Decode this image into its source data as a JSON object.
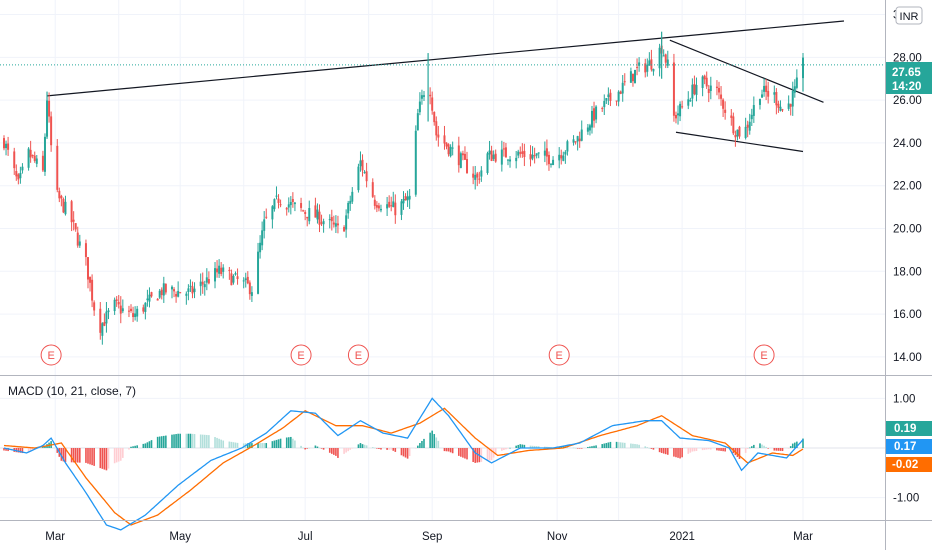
{
  "chart_data": [
    {
      "type": "candlestick",
      "currency_label": "INR",
      "ylim": [
        13.2,
        30.4
      ],
      "y_ticks": [
        "14.00",
        "16.00",
        "18.00",
        "20.00",
        "22.00",
        "24.00",
        "26.00",
        "28.00",
        "30.00"
      ],
      "x_ticks": [
        "Mar",
        "May",
        "Jul",
        "Sep",
        "Nov",
        "2021",
        "Mar"
      ],
      "x_range": [
        "2020-02-05",
        "2021-03-01"
      ],
      "last_price": "27.65",
      "countdown": "14:20",
      "colors": {
        "up": "#26a69a",
        "down": "#ef5350",
        "price_line": "#26a69a",
        "trendline": "#131722"
      },
      "earnings_markers": [
        {
          "label": "E",
          "date": "2020-02-28"
        },
        {
          "label": "E",
          "date": "2020-06-29"
        },
        {
          "label": "E",
          "date": "2020-07-27"
        },
        {
          "label": "E",
          "date": "2020-11-02"
        },
        {
          "label": "E",
          "date": "2021-02-10"
        }
      ],
      "trendlines": [
        {
          "from": [
            "2020-02-26",
            26.2
          ],
          "to": [
            "2021-03-21",
            29.7
          ]
        },
        {
          "from": [
            "2020-12-26",
            28.8
          ],
          "to": [
            "2021-03-11",
            25.9
          ]
        },
        {
          "from": [
            "2020-12-29",
            24.5
          ],
          "to": [
            "2021-03-01",
            23.6
          ]
        }
      ],
      "close_path": [
        [
          "2020-02-05",
          24.1
        ],
        [
          "2020-02-12",
          22.0
        ],
        [
          "2020-02-17",
          23.5
        ],
        [
          "2020-02-24",
          22.6
        ],
        [
          "2020-02-26",
          26.1
        ],
        [
          "2020-02-28",
          23.8
        ],
        [
          "2020-03-02",
          21.5
        ],
        [
          "2020-03-08",
          20.6
        ],
        [
          "2020-03-16",
          18.4
        ],
        [
          "2020-03-22",
          15.3
        ],
        [
          "2020-03-30",
          16.4
        ],
        [
          "2020-04-08",
          15.9
        ],
        [
          "2020-04-22",
          17.1
        ],
        [
          "2020-05-06",
          17.0
        ],
        [
          "2020-05-20",
          18.0
        ],
        [
          "2020-06-05",
          17.2
        ],
        [
          "2020-06-11",
          20.2
        ],
        [
          "2020-06-18",
          21.4
        ],
        [
          "2020-06-28",
          20.9
        ],
        [
          "2020-07-08",
          20.5
        ],
        [
          "2020-07-19",
          19.8
        ],
        [
          "2020-07-24",
          21.7
        ],
        [
          "2020-07-28",
          23.1
        ],
        [
          "2020-08-04",
          21.3
        ],
        [
          "2020-08-14",
          20.9
        ],
        [
          "2020-08-21",
          21.4
        ],
        [
          "2020-08-25",
          25.3
        ],
        [
          "2020-08-30",
          27.2
        ],
        [
          "2020-09-03",
          24.4
        ],
        [
          "2020-09-15",
          23.2
        ],
        [
          "2020-09-23",
          22.3
        ],
        [
          "2020-09-28",
          23.4
        ],
        [
          "2020-10-10",
          23.5
        ],
        [
          "2020-10-30",
          23.3
        ],
        [
          "2020-11-10",
          24.1
        ],
        [
          "2020-11-19",
          25.3
        ],
        [
          "2020-12-01",
          26.4
        ],
        [
          "2020-12-10",
          27.4
        ],
        [
          "2020-12-18",
          27.8
        ],
        [
          "2020-12-22",
          28.5
        ],
        [
          "2020-12-25",
          27.6
        ],
        [
          "2020-12-28",
          25.2
        ],
        [
          "2021-01-02",
          25.8
        ],
        [
          "2021-01-09",
          26.9
        ],
        [
          "2021-01-18",
          26.4
        ],
        [
          "2021-01-27",
          24.6
        ],
        [
          "2021-01-31",
          24.4
        ],
        [
          "2021-02-08",
          26.4
        ],
        [
          "2021-02-15",
          26.2
        ],
        [
          "2021-02-20",
          25.4
        ],
        [
          "2021-02-25",
          26.4
        ],
        [
          "2021-03-01",
          27.65
        ]
      ]
    },
    {
      "type": "macd",
      "title": "MACD (10, 21, close, 7)",
      "ylim": [
        -1.45,
        1.45
      ],
      "y_ticks": [
        "1.00",
        "-1.00"
      ],
      "badges": [
        {
          "value": "0.19",
          "color": "#26a69a"
        },
        {
          "value": "0.17",
          "color": "#2196f3"
        },
        {
          "value": "-0.02",
          "color": "#ff6d00"
        }
      ],
      "colors": {
        "macd": "#2196f3",
        "signal": "#ff6d00",
        "hist_up": "#26a69a",
        "hist_down": "#ef5350"
      },
      "macd_path": [
        [
          "2020-02-05",
          0.0
        ],
        [
          "2020-02-16",
          -0.1
        ],
        [
          "2020-02-24",
          0.05
        ],
        [
          "2020-02-28",
          0.2
        ],
        [
          "2020-03-06",
          -0.3
        ],
        [
          "2020-03-16",
          -0.9
        ],
        [
          "2020-03-26",
          -1.55
        ],
        [
          "2020-04-02",
          -1.65
        ],
        [
          "2020-04-14",
          -1.35
        ],
        [
          "2020-04-30",
          -0.75
        ],
        [
          "2020-05-16",
          -0.25
        ],
        [
          "2020-05-31",
          0.0
        ],
        [
          "2020-06-12",
          0.3
        ],
        [
          "2020-06-24",
          0.75
        ],
        [
          "2020-07-06",
          0.7
        ],
        [
          "2020-07-17",
          0.25
        ],
        [
          "2020-07-28",
          0.55
        ],
        [
          "2020-08-08",
          0.3
        ],
        [
          "2020-08-20",
          0.2
        ],
        [
          "2020-09-01",
          1.0
        ],
        [
          "2020-09-09",
          0.65
        ],
        [
          "2020-09-22",
          -0.1
        ],
        [
          "2020-09-30",
          -0.3
        ],
        [
          "2020-10-14",
          0.0
        ],
        [
          "2020-10-30",
          0.0
        ],
        [
          "2020-11-12",
          0.1
        ],
        [
          "2020-11-28",
          0.45
        ],
        [
          "2020-12-14",
          0.55
        ],
        [
          "2020-12-22",
          0.55
        ],
        [
          "2020-12-31",
          0.2
        ],
        [
          "2021-01-14",
          0.15
        ],
        [
          "2021-01-24",
          0.0
        ],
        [
          "2021-01-30",
          -0.45
        ],
        [
          "2021-02-07",
          -0.1
        ],
        [
          "2021-02-21",
          -0.2
        ],
        [
          "2021-03-01",
          0.17
        ]
      ],
      "signal_path": [
        [
          "2020-02-05",
          0.05
        ],
        [
          "2020-02-20",
          0.0
        ],
        [
          "2020-03-04",
          0.1
        ],
        [
          "2020-03-16",
          -0.6
        ],
        [
          "2020-03-30",
          -1.3
        ],
        [
          "2020-04-07",
          -1.55
        ],
        [
          "2020-04-20",
          -1.35
        ],
        [
          "2020-05-06",
          -0.85
        ],
        [
          "2020-05-22",
          -0.3
        ],
        [
          "2020-06-06",
          0.05
        ],
        [
          "2020-06-20",
          0.4
        ],
        [
          "2020-07-01",
          0.75
        ],
        [
          "2020-07-16",
          0.45
        ],
        [
          "2020-07-29",
          0.45
        ],
        [
          "2020-08-12",
          0.3
        ],
        [
          "2020-08-26",
          0.5
        ],
        [
          "2020-09-07",
          0.8
        ],
        [
          "2020-09-22",
          0.2
        ],
        [
          "2020-10-03",
          -0.15
        ],
        [
          "2020-10-18",
          -0.05
        ],
        [
          "2020-11-04",
          0.0
        ],
        [
          "2020-11-22",
          0.25
        ],
        [
          "2020-12-10",
          0.45
        ],
        [
          "2020-12-22",
          0.65
        ],
        [
          "2021-01-06",
          0.25
        ],
        [
          "2021-01-22",
          0.1
        ],
        [
          "2021-02-02",
          -0.3
        ],
        [
          "2021-02-14",
          -0.1
        ],
        [
          "2021-02-24",
          -0.15
        ],
        [
          "2021-03-01",
          -0.02
        ]
      ]
    }
  ]
}
